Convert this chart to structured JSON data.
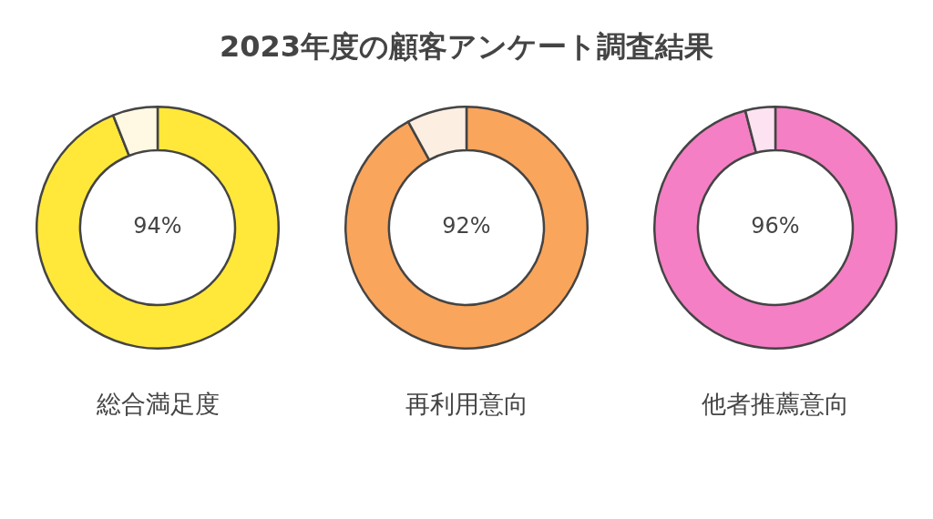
{
  "chart_data": [
    {
      "type": "donut",
      "title": "2023年度の顧客アンケート調査結果",
      "xlabel": "総合満足度",
      "categories": [
        null,
        null
      ],
      "values": [
        94,
        6
      ],
      "colors": [
        "#ffe83a",
        "#fff9e3"
      ],
      "value_labels": [
        "94%",
        null
      ]
    },
    {
      "type": "donut",
      "xlabel": "再利用意向",
      "categories": [
        null,
        null
      ],
      "values": [
        92,
        8
      ],
      "colors": [
        "#faa55c",
        "#fdeee2"
      ],
      "value_labels": [
        "92%",
        null
      ]
    },
    {
      "type": "donut",
      "xlabel": "他者推薦意向",
      "categories": [
        null,
        null
      ],
      "values": [
        96,
        4
      ],
      "colors": [
        "#f47fc4",
        "#fde2f1"
      ],
      "value_labels": [
        "96%",
        null
      ]
    }
  ]
}
